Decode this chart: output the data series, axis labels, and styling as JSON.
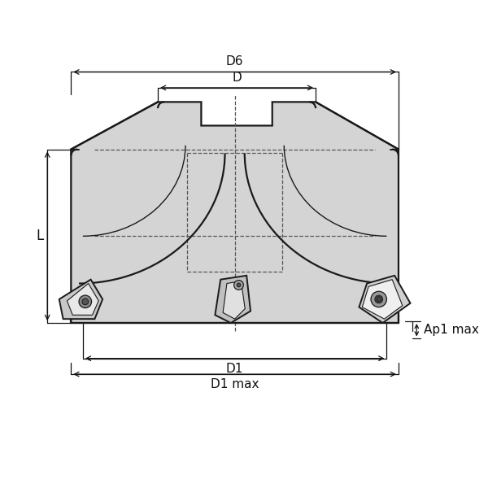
{
  "bg_color": "#ffffff",
  "line_color": "#1a1a1a",
  "fill_color": "#d4d4d4",
  "dark_fill": "#a0a0a0",
  "dashed_color": "#555555",
  "dim_color": "#111111",
  "labels": {
    "D6": "D6",
    "D": "D",
    "D1": "D1",
    "D1max": "D1 max",
    "L": "L",
    "Ap1max": "Ap1 max"
  },
  "font_size": 11,
  "dim_font_size": 11
}
